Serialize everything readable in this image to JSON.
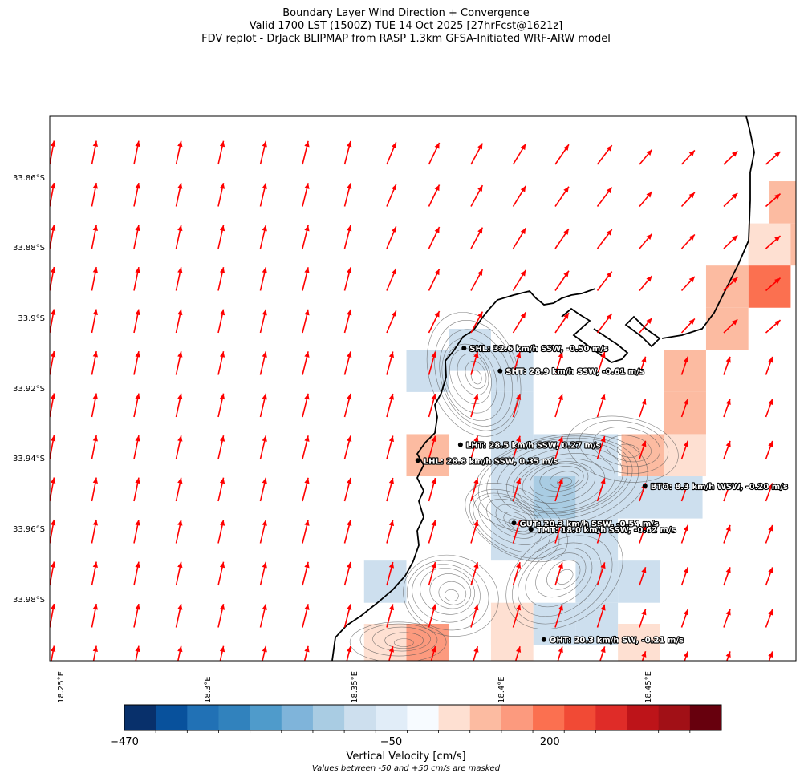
{
  "title": {
    "line1": "Boundary Layer Wind Direction + Convergence",
    "line2": "Valid 1700 LST (1500Z) TUE 14 Oct 2025 [27hrFcst@1621z]",
    "line3": "FDV replot - DrJack BLIPMAP from RASP 1.3km GFSA-Initiated WRF-ARW model"
  },
  "axes": {
    "lat_labels": [
      "33.86°S",
      "33.88°S",
      "33.9°S",
      "33.92°S",
      "33.94°S",
      "33.96°S",
      "33.98°S"
    ],
    "lon_labels": [
      "18.25°E",
      "18.3°E",
      "18.35°E",
      "18.4°E",
      "18.45°E"
    ],
    "lat_range": [
      -33.997,
      -33.842
    ],
    "lon_range": [
      18.246,
      18.5
    ]
  },
  "stations": [
    {
      "code": "SHL",
      "label": "SHL: 32.6 km/h SSW, -0.50 m/s",
      "lat": -33.908,
      "lon": 18.387
    },
    {
      "code": "SHT",
      "label": "SHT: 28.9 km/h SSW, -0.61 m/s",
      "lat": -33.9145,
      "lon": 18.3993
    },
    {
      "code": "LHT",
      "label": "LHT: 28.5 km/h SSW, 0.27 m/s",
      "lat": -33.9355,
      "lon": 18.3858
    },
    {
      "code": "LHL",
      "label": "LHL: 28.8 km/h SSW, 0.35 m/s",
      "lat": -33.94,
      "lon": 18.3713
    },
    {
      "code": "BTO",
      "label": "BTO: 8.3 km/h WSW, -0.20 m/s",
      "lat": -33.9472,
      "lon": 18.4486
    },
    {
      "code": "GUT",
      "label": "GUT: 20.3 km/h SSW, -0.54 m/s",
      "lat": -33.9578,
      "lon": 18.404
    },
    {
      "code": "TMT",
      "label": "TMT: 18.0 km/h SSW, -0.62 m/s",
      "lat": -33.9596,
      "lon": 18.4098
    },
    {
      "code": "OHT",
      "label": "OHT: 20.3 km/h SW, -0.21 m/s",
      "lat": -33.991,
      "lon": 18.4142
    }
  ],
  "vertical_velocity_cells": [
    {
      "lat": -33.8665,
      "lon": 18.4982,
      "value": 100
    },
    {
      "lat": -33.8785,
      "lon": 18.4982,
      "value": 100
    },
    {
      "lat": -33.8785,
      "lon": 18.491,
      "value": 70
    },
    {
      "lat": -33.8905,
      "lon": 18.491,
      "value": 200
    },
    {
      "lat": -33.8905,
      "lon": 18.4766,
      "value": 120
    },
    {
      "lat": -33.9025,
      "lon": 18.4766,
      "value": 120
    },
    {
      "lat": -33.9145,
      "lon": 18.4622,
      "value": 120
    },
    {
      "lat": -33.9265,
      "lon": 18.4622,
      "value": 120
    },
    {
      "lat": -33.9385,
      "lon": 18.4478,
      "value": 90
    },
    {
      "lat": -33.9385,
      "lon": 18.4622,
      "value": 70
    },
    {
      "lat": -33.9085,
      "lon": 18.389,
      "value": -80
    },
    {
      "lat": -33.9145,
      "lon": 18.3746,
      "value": -80
    },
    {
      "lat": -33.9145,
      "lon": 18.4034,
      "value": -80
    },
    {
      "lat": -33.9265,
      "lon": 18.4034,
      "value": -80
    },
    {
      "lat": -33.9385,
      "lon": 18.3746,
      "value": 90
    },
    {
      "lat": -33.9385,
      "lon": 18.4034,
      "value": -90
    },
    {
      "lat": -33.9385,
      "lon": 18.4178,
      "value": -90
    },
    {
      "lat": -33.9385,
      "lon": 18.4322,
      "value": -80
    },
    {
      "lat": -33.9505,
      "lon": 18.4034,
      "value": -90
    },
    {
      "lat": -33.9505,
      "lon": 18.4178,
      "value": -160
    },
    {
      "lat": -33.9505,
      "lon": 18.4322,
      "value": -110
    },
    {
      "lat": -33.9505,
      "lon": 18.4466,
      "value": -80
    },
    {
      "lat": -33.9505,
      "lon": 18.461,
      "value": -80
    },
    {
      "lat": -33.9625,
      "lon": 18.4034,
      "value": -80
    },
    {
      "lat": -33.9625,
      "lon": 18.4178,
      "value": -80
    },
    {
      "lat": -33.9625,
      "lon": 18.4322,
      "value": -80
    },
    {
      "lat": -33.9745,
      "lon": 18.3602,
      "value": -80
    },
    {
      "lat": -33.9745,
      "lon": 18.4322,
      "value": -80
    },
    {
      "lat": -33.9745,
      "lon": 18.4466,
      "value": -80
    },
    {
      "lat": -33.9865,
      "lon": 18.4034,
      "value": 70
    },
    {
      "lat": -33.9865,
      "lon": 18.4178,
      "value": -80
    },
    {
      "lat": -33.9865,
      "lon": 18.4322,
      "value": -80
    },
    {
      "lat": -33.9925,
      "lon": 18.3746,
      "value": 130
    },
    {
      "lat": -33.9925,
      "lon": 18.3602,
      "value": 70
    },
    {
      "lat": -33.9925,
      "lon": 18.4466,
      "value": 70
    },
    {
      "lat": -33.9925,
      "lon": 18.4034,
      "value": 70
    }
  ],
  "wind_field": {
    "description_note": "",
    "mean_direction_deg_from": 200
  },
  "colorbar": {
    "min": -470,
    "max": 470,
    "tick_labels": [
      "−470",
      "−50",
      "200"
    ],
    "tick_values": [
      -470,
      -50,
      200
    ],
    "colors": [
      "#08306b",
      "#08519c",
      "#2171b5",
      "#3182bd",
      "#4f9bcb",
      "#7fb4da",
      "#a9cce3",
      "#cddfee",
      "#e1edf8",
      "#f7fbff",
      "#fee0d2",
      "#fcbba1",
      "#fc9a7e",
      "#fb7050",
      "#f14a35",
      "#df2c28",
      "#bd1419",
      "#a11016",
      "#67000d"
    ],
    "title": "Vertical Velocity [cm/s]",
    "note": "Values between -50 and +50 cm/s are masked"
  },
  "colors": {
    "arrow": "#ff0000",
    "coast": "#000000",
    "terrain_contour": "#555555"
  }
}
